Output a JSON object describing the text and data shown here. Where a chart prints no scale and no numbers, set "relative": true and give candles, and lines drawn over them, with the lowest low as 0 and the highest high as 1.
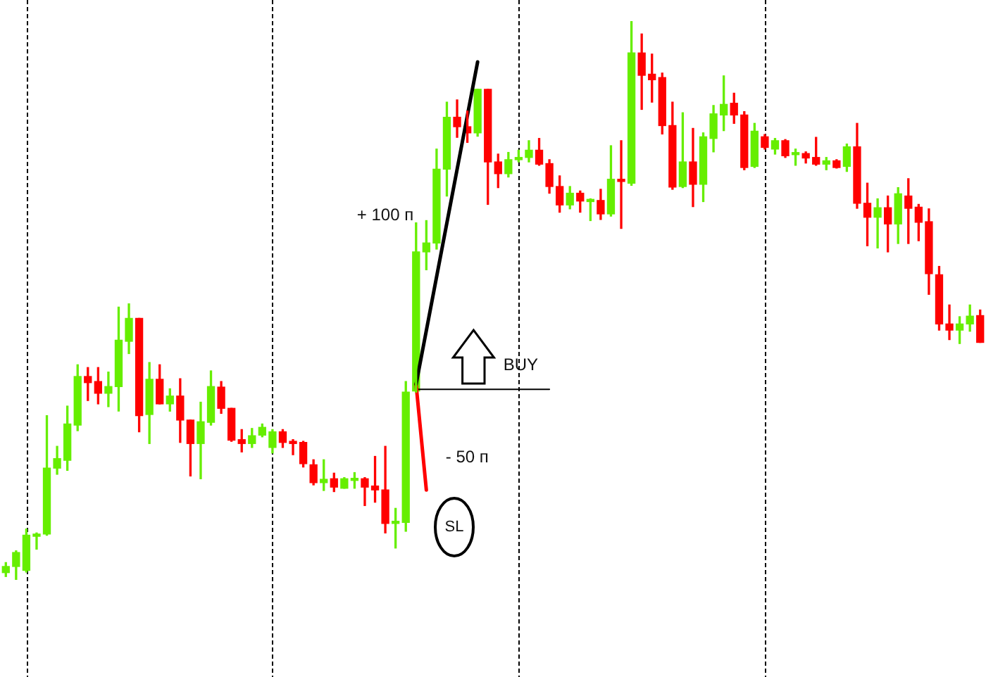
{
  "chart_data": {
    "type": "candlestick",
    "relative": true,
    "categories": [
      null,
      null,
      null,
      null,
      null,
      null,
      null,
      null,
      null,
      null,
      null,
      null,
      null,
      null,
      null,
      null,
      null,
      null,
      null,
      null,
      null,
      null,
      null,
      null,
      null,
      null,
      null,
      null,
      null,
      null,
      null,
      null,
      null,
      null,
      null,
      null,
      null,
      null,
      null,
      null,
      null,
      null,
      null,
      null,
      null,
      null,
      null,
      null,
      null,
      null,
      null,
      null,
      null,
      null,
      null,
      null,
      null,
      null,
      null,
      null,
      null,
      null,
      null,
      null,
      null,
      null,
      null,
      null,
      null,
      null,
      null,
      null,
      null,
      null,
      null,
      null,
      null,
      null,
      null,
      null,
      null,
      null,
      null,
      null,
      null,
      null,
      null,
      null,
      null,
      null,
      null,
      null,
      null,
      null,
      null,
      null
    ],
    "ohlc": [
      [
        0.013,
        0.031,
        0.006,
        0.024
      ],
      [
        0.024,
        0.052,
        0,
        0.049
      ],
      [
        0.017,
        0.091,
        0.014,
        0.08
      ],
      [
        0.078,
        0.084,
        0.055,
        0.082
      ],
      [
        0.082,
        0.294,
        0.08,
        0.2
      ],
      [
        0.2,
        0.239,
        0.189,
        0.217
      ],
      [
        0.214,
        0.311,
        0.196,
        0.279
      ],
      [
        0.277,
        0.385,
        0.267,
        0.364
      ],
      [
        0.364,
        0.38,
        0.321,
        0.353
      ],
      [
        0.355,
        0.38,
        0.315,
        0.334
      ],
      [
        0.334,
        0.372,
        0.31,
        0.346
      ],
      [
        0.346,
        0.488,
        0.302,
        0.429
      ],
      [
        0.427,
        0.494,
        0.405,
        0.468
      ],
      [
        0.468,
        0.468,
        0.265,
        0.294
      ],
      [
        0.296,
        0.389,
        0.244,
        0.359
      ],
      [
        0.359,
        0.385,
        0.315,
        0.315
      ],
      [
        0.315,
        0.342,
        0.302,
        0.329
      ],
      [
        0.329,
        0.36,
        0.246,
        0.286
      ],
      [
        0.286,
        0.286,
        0.186,
        0.244
      ],
      [
        0.244,
        0.318,
        0.181,
        0.283
      ],
      [
        0.282,
        0.374,
        0.277,
        0.346
      ],
      [
        0.345,
        0.355,
        0.298,
        0.307
      ],
      [
        0.307,
        0.307,
        0.248,
        0.25
      ],
      [
        0.251,
        0.269,
        0.229,
        0.244
      ],
      [
        0.244,
        0.271,
        0.237,
        0.258
      ],
      [
        0.259,
        0.279,
        0.256,
        0.273
      ],
      [
        0.237,
        0.269,
        0.227,
        0.265
      ],
      [
        0.265,
        0.269,
        0.237,
        0.246
      ],
      [
        0.248,
        0.251,
        0.224,
        0.244
      ],
      [
        0.246,
        0.248,
        0.202,
        0.208
      ],
      [
        0.206,
        0.215,
        0.17,
        0.174
      ],
      [
        0.174,
        0.215,
        0.16,
        0.18
      ],
      [
        0.181,
        0.191,
        0.158,
        0.166
      ],
      [
        0.164,
        0.183,
        0.164,
        0.181
      ],
      [
        0.178,
        0.192,
        0.164,
        0.181
      ],
      [
        0.181,
        0.183,
        0.133,
        0.166
      ],
      [
        0.168,
        0.221,
        0.139,
        0.161
      ],
      [
        0.161,
        0.239,
        0.084,
        0.101
      ],
      [
        0.101,
        0.128,
        0.057,
        0.105
      ],
      [
        0.103,
        0.355,
        0.087,
        0.336
      ],
      [
        0.338,
        0.639,
        0.336,
        0.587
      ],
      [
        0.587,
        0.643,
        0.555,
        0.603
      ],
      [
        0.603,
        0.771,
        0.592,
        0.735
      ],
      [
        0.735,
        0.855,
        0.687,
        0.828
      ],
      [
        0.828,
        0.859,
        0.792,
        0.811
      ],
      [
        0.811,
        0.839,
        0.783,
        0.8
      ],
      [
        0.8,
        0.878,
        0.794,
        0.878
      ],
      [
        0.878,
        0.878,
        0.672,
        0.748
      ],
      [
        0.748,
        0.762,
        0.702,
        0.727
      ],
      [
        0.727,
        0.765,
        0.721,
        0.752
      ],
      [
        0.752,
        0.769,
        0.748,
        0.756
      ],
      [
        0.756,
        0.786,
        0.748,
        0.769
      ],
      [
        0.769,
        0.79,
        0.742,
        0.744
      ],
      [
        0.745,
        0.752,
        0.692,
        0.704
      ],
      [
        0.704,
        0.723,
        0.658,
        0.671
      ],
      [
        0.671,
        0.704,
        0.664,
        0.692
      ],
      [
        0.692,
        0.696,
        0.658,
        0.678
      ],
      [
        0.677,
        0.682,
        0.643,
        0.681
      ],
      [
        0.679,
        0.699,
        0.645,
        0.655
      ],
      [
        0.655,
        0.777,
        0.651,
        0.717
      ],
      [
        0.717,
        0.786,
        0.629,
        0.713
      ],
      [
        0.71,
        1,
        0.706,
        0.943
      ],
      [
        0.943,
        0.977,
        0.842,
        0.903
      ],
      [
        0.905,
        0.941,
        0.855,
        0.895
      ],
      [
        0.899,
        0.907,
        0.798,
        0.813
      ],
      [
        0.813,
        0.855,
        0.699,
        0.703
      ],
      [
        0.704,
        0.836,
        0.702,
        0.748
      ],
      [
        0.748,
        0.808,
        0.668,
        0.708
      ],
      [
        0.708,
        0.8,
        0.677,
        0.793
      ],
      [
        0.79,
        0.849,
        0.766,
        0.834
      ],
      [
        0.832,
        0.902,
        0.804,
        0.851
      ],
      [
        0.853,
        0.871,
        0.817,
        0.832
      ],
      [
        0.832,
        0.838,
        0.734,
        0.738
      ],
      [
        0.74,
        0.817,
        0.738,
        0.803
      ],
      [
        0.793,
        0.797,
        0.771,
        0.774
      ],
      [
        0.771,
        0.79,
        0.762,
        0.786
      ],
      [
        0.786,
        0.788,
        0.756,
        0.759
      ],
      [
        0.761,
        0.771,
        0.742,
        0.763
      ],
      [
        0.763,
        0.766,
        0.746,
        0.755
      ],
      [
        0.756,
        0.792,
        0.742,
        0.744
      ],
      [
        0.744,
        0.756,
        0.734,
        0.75
      ],
      [
        0.75,
        0.752,
        0.737,
        0.738
      ],
      [
        0.74,
        0.78,
        0.731,
        0.775
      ],
      [
        0.775,
        0.817,
        0.665,
        0.674
      ],
      [
        0.674,
        0.71,
        0.598,
        0.649
      ],
      [
        0.649,
        0.682,
        0.594,
        0.666
      ],
      [
        0.666,
        0.687,
        0.587,
        0.637
      ],
      [
        0.637,
        0.702,
        0.602,
        0.691
      ],
      [
        0.687,
        0.718,
        0.602,
        0.665
      ],
      [
        0.667,
        0.672,
        0.607,
        0.64
      ],
      [
        0.641,
        0.664,
        0.511,
        0.548
      ],
      [
        0.546,
        0.561,
        0.447,
        0.458
      ],
      [
        0.458,
        0.492,
        0.43,
        0.447
      ],
      [
        0.447,
        0.471,
        0.423,
        0.458
      ],
      [
        0.458,
        0.492,
        0.445,
        0.472
      ],
      [
        0.473,
        0.483,
        0.425,
        0.425
      ]
    ],
    "colors": [
      "#66ee00",
      "#66ee00",
      "#66ee00",
      "#66ee00",
      "#66ee00",
      "#66ee00",
      "#66ee00",
      "#66ee00",
      "#ff0000",
      "#ff0000",
      "#66ee00",
      "#66ee00",
      "#66ee00",
      "#ff0000",
      "#66ee00",
      "#ff0000",
      "#66ee00",
      "#ff0000",
      "#ff0000",
      "#66ee00",
      "#66ee00",
      "#ff0000",
      "#ff0000",
      "#ff0000",
      "#66ee00",
      "#66ee00",
      "#66ee00",
      "#ff0000",
      "#ff0000",
      "#ff0000",
      "#ff0000",
      "#66ee00",
      "#ff0000",
      "#66ee00",
      "#66ee00",
      "#ff0000",
      "#ff0000",
      "#ff0000",
      "#66ee00",
      "#66ee00",
      "#66ee00",
      "#66ee00",
      "#66ee00",
      "#66ee00",
      "#ff0000",
      "#ff0000",
      "#66ee00",
      "#ff0000",
      "#ff0000",
      "#66ee00",
      "#66ee00",
      "#66ee00",
      "#ff0000",
      "#ff0000",
      "#ff0000",
      "#66ee00",
      "#ff0000",
      "#66ee00",
      "#ff0000",
      "#66ee00",
      "#ff0000",
      "#66ee00",
      "#ff0000",
      "#ff0000",
      "#ff0000",
      "#ff0000",
      "#66ee00",
      "#ff0000",
      "#66ee00",
      "#66ee00",
      "#66ee00",
      "#ff0000",
      "#ff0000",
      "#66ee00",
      "#ff0000",
      "#66ee00",
      "#ff0000",
      "#66ee00",
      "#ff0000",
      "#ff0000",
      "#66ee00",
      "#ff0000",
      "#66ee00",
      "#ff0000",
      "#ff0000",
      "#66ee00",
      "#ff0000",
      "#66ee00",
      "#ff0000",
      "#ff0000",
      "#ff0000",
      "#ff0000",
      "#ff0000",
      "#66ee00",
      "#66ee00",
      "#ff0000"
    ],
    "series": [
      {
        "type": "line",
        "name": "+ 100 п",
        "color": "#000000",
        "values": [
          null,
          null,
          null,
          null,
          null,
          null,
          null,
          null,
          null,
          null,
          null,
          null,
          null,
          null,
          null,
          null,
          null,
          null,
          null,
          null,
          null,
          null,
          null,
          null,
          null,
          null,
          null,
          null,
          null,
          null,
          null,
          null,
          null,
          null,
          null,
          null,
          null,
          null,
          null,
          null,
          0.35,
          null,
          null,
          null,
          null,
          null,
          0.927,
          null,
          null,
          null,
          null,
          null,
          null,
          null,
          null,
          null,
          null,
          null,
          null,
          null,
          null,
          null,
          null,
          null,
          null,
          null,
          null,
          null,
          null,
          null,
          null,
          null,
          null,
          null,
          null,
          null,
          null,
          null,
          null,
          null,
          null,
          null,
          null,
          null,
          null,
          null,
          null,
          null,
          null,
          null,
          null,
          null,
          null,
          null,
          null,
          null
        ]
      },
      {
        "type": "line",
        "name": "- 50 п",
        "color": "#ff0000",
        "values": [
          null,
          null,
          null,
          null,
          null,
          null,
          null,
          null,
          null,
          null,
          null,
          null,
          null,
          null,
          null,
          null,
          null,
          null,
          null,
          null,
          null,
          null,
          null,
          null,
          null,
          null,
          null,
          null,
          null,
          null,
          null,
          null,
          null,
          null,
          null,
          null,
          null,
          null,
          null,
          null,
          0.35,
          0.161,
          null,
          null,
          null,
          null,
          null,
          null,
          null,
          null,
          null,
          null,
          null,
          null,
          null,
          null,
          null,
          null,
          null,
          null,
          null,
          null,
          null,
          null,
          null,
          null,
          null,
          null,
          null,
          null,
          null,
          null,
          null,
          null,
          null,
          null,
          null,
          null,
          null,
          null,
          null,
          null,
          null,
          null,
          null,
          null,
          null,
          null,
          null,
          null,
          null,
          null,
          null,
          null,
          null,
          null
        ]
      },
      {
        "type": "line",
        "name": "BUY",
        "color": "#000000",
        "values": [
          null,
          null,
          null,
          null,
          null,
          null,
          null,
          null,
          null,
          null,
          null,
          null,
          null,
          null,
          null,
          null,
          null,
          null,
          null,
          null,
          null,
          null,
          null,
          null,
          null,
          null,
          null,
          null,
          null,
          null,
          null,
          null,
          null,
          null,
          null,
          null,
          null,
          null,
          null,
          null,
          0.341,
          null,
          null,
          null,
          null,
          null,
          null,
          null,
          null,
          null,
          null,
          null,
          null,
          0.341,
          null,
          null,
          null,
          null,
          null,
          null,
          null,
          null,
          null,
          null,
          null,
          null,
          null,
          null,
          null,
          null,
          null,
          null,
          null,
          null,
          null,
          null,
          null,
          null,
          null,
          null,
          null,
          null,
          null,
          null,
          null,
          null,
          null,
          null,
          null,
          null,
          null,
          null,
          null,
          null,
          null,
          null
        ]
      }
    ],
    "annotations": [
      "SL"
    ]
  }
}
